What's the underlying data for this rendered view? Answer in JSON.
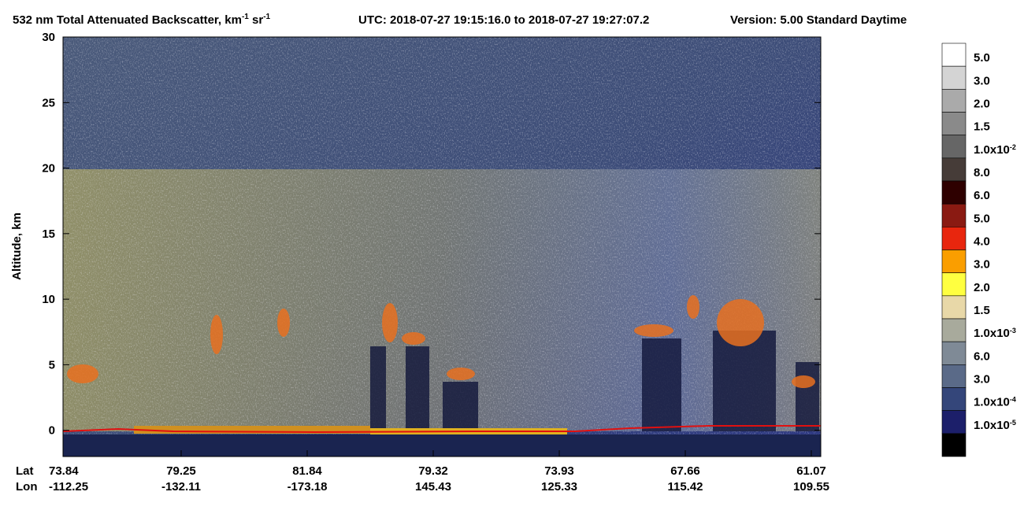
{
  "chart_data": {
    "type": "curtain",
    "title": {
      "text": "532 nm Total Attenuated Backscatter, km",
      "sup1": "-1",
      "text2": " sr",
      "sup2": "-1"
    },
    "utc": "UTC:  2018-07-27 19:15:16.0  to  2018-07-27 19:27:07.2",
    "version": "Version: 5.00  Standard  Daytime",
    "y_label": "Altitude, km",
    "ylim": [
      -2,
      30
    ],
    "yticks": [
      0,
      5,
      10,
      15,
      20,
      25,
      30
    ],
    "row_labels": [
      "Lat",
      "Lon"
    ],
    "lat": [
      "73.84",
      "79.25",
      "81.84",
      "79.32",
      "73.93",
      "67.66",
      "61.07"
    ],
    "lon": [
      "-112.25",
      "-132.11",
      "-173.18",
      "145.43",
      "125.33",
      "115.42",
      "109.55"
    ],
    "colorbar": {
      "colors": [
        "#ffffff",
        "#d4d4d4",
        "#aaaaaa",
        "#8a8a8a",
        "#666666",
        "#463c38",
        "#2e0000",
        "#8a1a12",
        "#e8260e",
        "#fa9e00",
        "#ffff40",
        "#e8d8a8",
        "#a8aa9c",
        "#7f8a96",
        "#5a6a88",
        "#34467a",
        "#1c1f6a",
        "#000000"
      ],
      "labels": [
        {
          "base": "5.0"
        },
        {
          "base": "3.0"
        },
        {
          "base": "2.0"
        },
        {
          "base": "1.5"
        },
        {
          "base": "1.0x10",
          "exp": "-2"
        },
        {
          "base": "8.0"
        },
        {
          "base": "6.0"
        },
        {
          "base": "5.0"
        },
        {
          "base": "4.0"
        },
        {
          "base": "3.0"
        },
        {
          "base": "2.0"
        },
        {
          "base": "1.5"
        },
        {
          "base": "1.0x10",
          "exp": "-3"
        },
        {
          "base": "6.0"
        },
        {
          "base": "3.0"
        },
        {
          "base": "1.0x10",
          "exp": "-4"
        },
        {
          "base": "1.0x10",
          "exp": "-5"
        }
      ]
    }
  }
}
